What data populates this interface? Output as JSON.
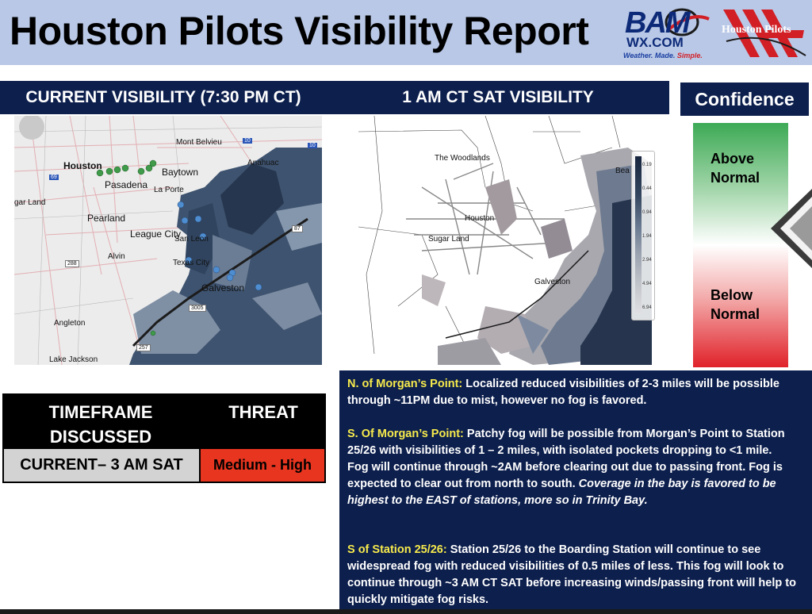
{
  "header": {
    "title": "Houston Pilots Visibility Report",
    "bam_logo_main": "BAM",
    "bam_logo_sub": "WX.COM",
    "bam_tagline_prefix": "Weather. Made.",
    "bam_tagline_em": "Simple.",
    "partner_logo_text": "Houston Pilots"
  },
  "panels": {
    "current_title": "CURRENT VISIBILITY (7:30 PM CT)",
    "forecast_title": "1 AM CT SAT VISIBILITY",
    "confidence_title": "Confidence"
  },
  "current_map": {
    "labels": [
      "Mont Belvieu",
      "Houston",
      "Baytown",
      "Anahuac",
      "Pasadena",
      "La Porte",
      "gar Land",
      "Pearland",
      "League City",
      "San Leon",
      "Alvin",
      "Texas City",
      "Galveston",
      "Angleton",
      "Lake Jackson"
    ],
    "shields": [
      "10",
      "10",
      "69",
      "288",
      "87",
      "3005",
      "257"
    ]
  },
  "forecast_map": {
    "labels": [
      "The Woodlands",
      "Houston",
      "Sugar Land",
      "Galveston",
      "Bea"
    ],
    "legend_values": [
      "0.19",
      "0.44",
      "0.94",
      "1.94",
      "2.94",
      "4.94",
      "6.94"
    ]
  },
  "confidence": {
    "upper_line1": "Above",
    "upper_line2": "Normal",
    "lower_line1": "Below",
    "lower_line2": "Normal",
    "colors": {
      "high": "#3daa55",
      "low": "#e0222a"
    }
  },
  "threat_table": {
    "col1_line1": "TIMEFRAME",
    "col1_line2": "DISCUSSED",
    "col2": "THREAT",
    "timeframe": "CURRENT– 3 AM SAT",
    "threat": "Medium - High",
    "threat_color": "#e8351f"
  },
  "discussion": {
    "p1_label": "N. of Morgan’s Point:",
    "p1_text": " Localized reduced visibilities of 2-3 miles will be possible through ~11PM due to mist, however no fog is favored.",
    "p2_label": "S. Of Morgan’s Point:",
    "p2_text": " Patchy fog will be possible from Morgan’s Point to Station 25/26 with visibilities of 1 – 2 miles, with isolated pockets dropping to <1 mile. Fog will continue through ~2AM before clearing out due to passing front. Fog is expected to clear out from north to south. ",
    "p2_italic": "Coverage in the bay is favored to be highest to the EAST of stations, more so in Trinity Bay.",
    "p3_label": "S of Station 25/26:",
    "p3_text": " Station 25/26 to the Boarding Station will continue to see widespread fog with reduced visibilities of 0.5 miles of less. This fog will look to continue through ~3 AM CT SAT before increasing winds/passing front will help to quickly mitigate fog risks."
  }
}
